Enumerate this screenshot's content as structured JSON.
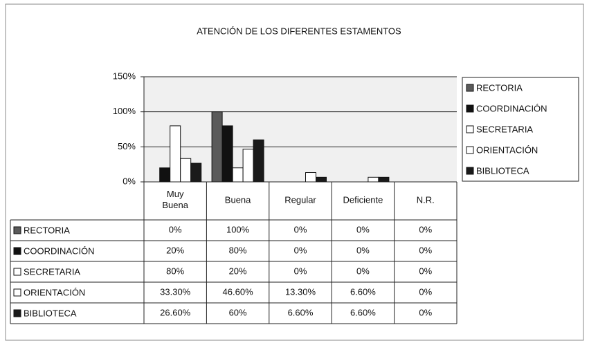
{
  "chart_data": {
    "type": "bar",
    "title": "ATENCIÓN DE LOS DIFERENTES ESTAMENTOS",
    "categories": [
      "Muy Buena",
      "Buena",
      "Regular",
      "Deficiente",
      "N.R."
    ],
    "series": [
      {
        "name": "RECTORIA",
        "color": "#5a5a5a",
        "values": [
          0,
          100,
          0,
          0,
          0
        ],
        "value_labels": [
          "0%",
          "100%",
          "0%",
          "0%",
          "0%"
        ]
      },
      {
        "name": "COORDINACIÓN",
        "color": "#111111",
        "values": [
          20,
          80,
          0,
          0,
          0
        ],
        "value_labels": [
          "20%",
          "80%",
          "0%",
          "0%",
          "0%"
        ]
      },
      {
        "name": "SECRETARIA",
        "color": "#ffffff",
        "values": [
          80,
          20,
          0,
          0,
          0
        ],
        "value_labels": [
          "80%",
          "20%",
          "0%",
          "0%",
          "0%"
        ]
      },
      {
        "name": "ORIENTACIÓN",
        "color": "#ffffff",
        "values": [
          33.3,
          46.6,
          13.3,
          6.6,
          0
        ],
        "value_labels": [
          "33.30%",
          "46.60%",
          "13.30%",
          "6.60%",
          "0%"
        ]
      },
      {
        "name": "BIBLIOTECA",
        "color": "#1a1a1a",
        "values": [
          26.6,
          60,
          6.6,
          6.6,
          0
        ],
        "value_labels": [
          "26.60%",
          "60%",
          "6.60%",
          "6.60%",
          "0%"
        ]
      }
    ],
    "ylim": [
      0,
      150
    ],
    "yticks": [
      {
        "value": 0,
        "label": "0%"
      },
      {
        "value": 50,
        "label": "50%"
      },
      {
        "value": 100,
        "label": "100%"
      },
      {
        "value": 150,
        "label": "150%"
      }
    ],
    "grid": true,
    "legend": "right"
  }
}
